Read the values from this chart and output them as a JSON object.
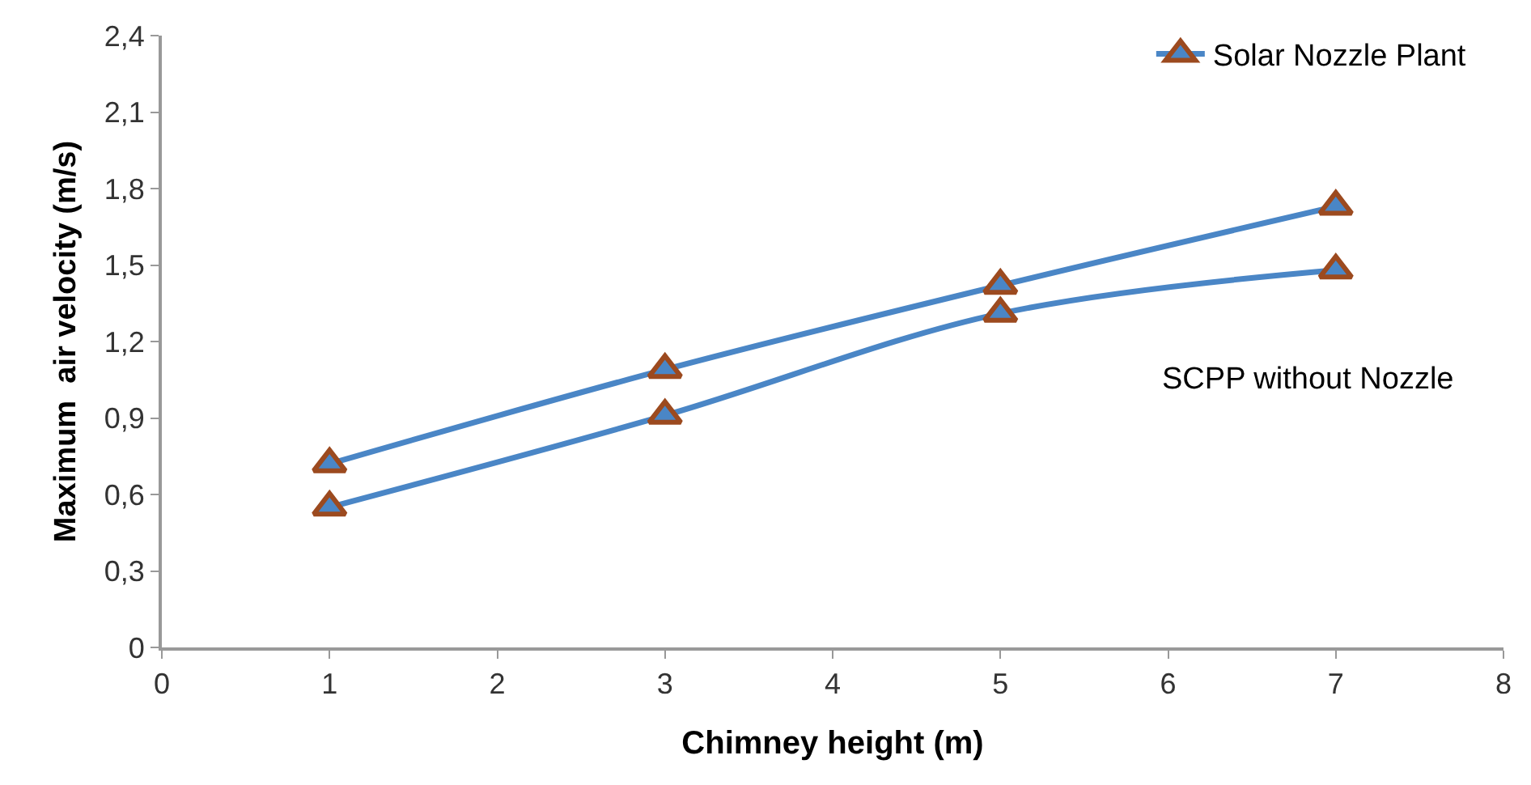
{
  "chart_data": {
    "type": "line",
    "xlabel": "Chimney height (m)",
    "ylabel": "Maximum  air velocity (m/s)",
    "x": [
      1,
      3,
      5,
      7
    ],
    "series": [
      {
        "name": "Solar Nozzle Plant",
        "color": "#4a86c6",
        "values": [
          0.72,
          1.09,
          1.42,
          1.73
        ]
      },
      {
        "name": "SCPP without Nozzle",
        "color": "#4a86c6",
        "values": [
          0.55,
          0.91,
          1.31,
          1.48
        ]
      }
    ],
    "xlim": [
      0,
      8
    ],
    "xticks": [
      0,
      1,
      2,
      3,
      4,
      5,
      6,
      7,
      8
    ],
    "ylim": [
      0,
      2.4
    ],
    "yticks": [
      0,
      {
        "value": 0.3,
        "label": "0,3"
      },
      {
        "value": 0.6,
        "label": "0,6"
      },
      {
        "value": 0.9,
        "label": "0,9"
      },
      {
        "value": 1.2,
        "label": "1,2"
      },
      {
        "value": 1.5,
        "label": "1,5"
      },
      {
        "value": 1.8,
        "label": "1,8"
      },
      {
        "value": 2.1,
        "label": "2,1"
      },
      {
        "value": 2.4,
        "label": "2,4"
      }
    ],
    "marker": "triangle",
    "line_style": "solid",
    "legend": "top right"
  }
}
